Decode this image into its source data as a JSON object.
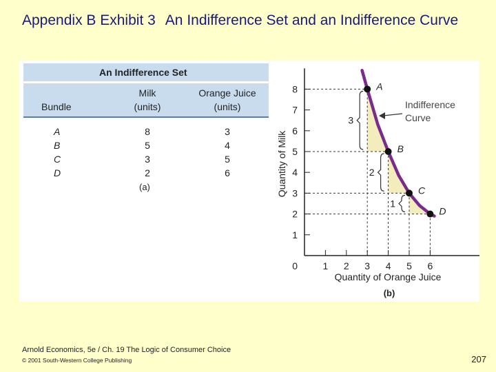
{
  "slide": {
    "title_prefix": "Appendix B Exhibit 3",
    "title_main": "An Indifference Set and an Indifference Curve",
    "footer_source": "Arnold Economics, 5e / Ch. 19 The Logic of Consumer Choice",
    "footer_copyright": "© 2001 South-Western College Publishing",
    "page_number": "207"
  },
  "chart_data": [
    {
      "type": "table",
      "title": "An Indifference Set",
      "columns": [
        {
          "line1": "",
          "line2": "Bundle"
        },
        {
          "line1": "Milk",
          "line2": "(units)"
        },
        {
          "line1": "Orange Juice",
          "line2": "(units)"
        }
      ],
      "rows": [
        {
          "bundle": "A",
          "milk": "8",
          "oj": "3"
        },
        {
          "bundle": "B",
          "milk": "5",
          "oj": "4"
        },
        {
          "bundle": "C",
          "milk": "3",
          "oj": "5"
        },
        {
          "bundle": "D",
          "milk": "2",
          "oj": "6"
        }
      ],
      "panel_label": "(a)"
    },
    {
      "type": "line",
      "xlabel": "Quantity of Orange Juice",
      "ylabel": "Quantity of Milk",
      "xlim": [
        0,
        7
      ],
      "ylim": [
        0,
        9
      ],
      "x_ticks": [
        1,
        2,
        3,
        4,
        5,
        6
      ],
      "y_ticks": [
        1,
        2,
        3,
        4,
        5,
        6,
        7,
        8
      ],
      "origin_label": "0",
      "points": [
        {
          "label": "A",
          "x": 3,
          "y": 8
        },
        {
          "label": "B",
          "x": 4,
          "y": 5
        },
        {
          "label": "C",
          "x": 5,
          "y": 3
        },
        {
          "label": "D",
          "x": 6,
          "y": 2
        }
      ],
      "curve": [
        [
          2.75,
          8.9
        ],
        [
          3,
          8
        ],
        [
          3.5,
          6.3
        ],
        [
          4,
          5
        ],
        [
          4.5,
          3.85
        ],
        [
          5,
          3
        ],
        [
          5.5,
          2.4
        ],
        [
          6,
          2
        ],
        [
          6.2,
          1.9
        ]
      ],
      "drops": [
        {
          "label": "3",
          "x": 3,
          "from": 8,
          "to": 5
        },
        {
          "label": "2",
          "x": 4,
          "from": 5,
          "to": 3
        },
        {
          "label": "1",
          "x": 5,
          "from": 3,
          "to": 2
        }
      ],
      "curve_annotation": {
        "line1": "Indifference",
        "line2": "Curve"
      },
      "panel_label": "(b)",
      "colors": {
        "curve": "#7a2b8c",
        "fill": "#f3edbd",
        "point": "#111111",
        "guide": "#333333"
      }
    }
  ]
}
